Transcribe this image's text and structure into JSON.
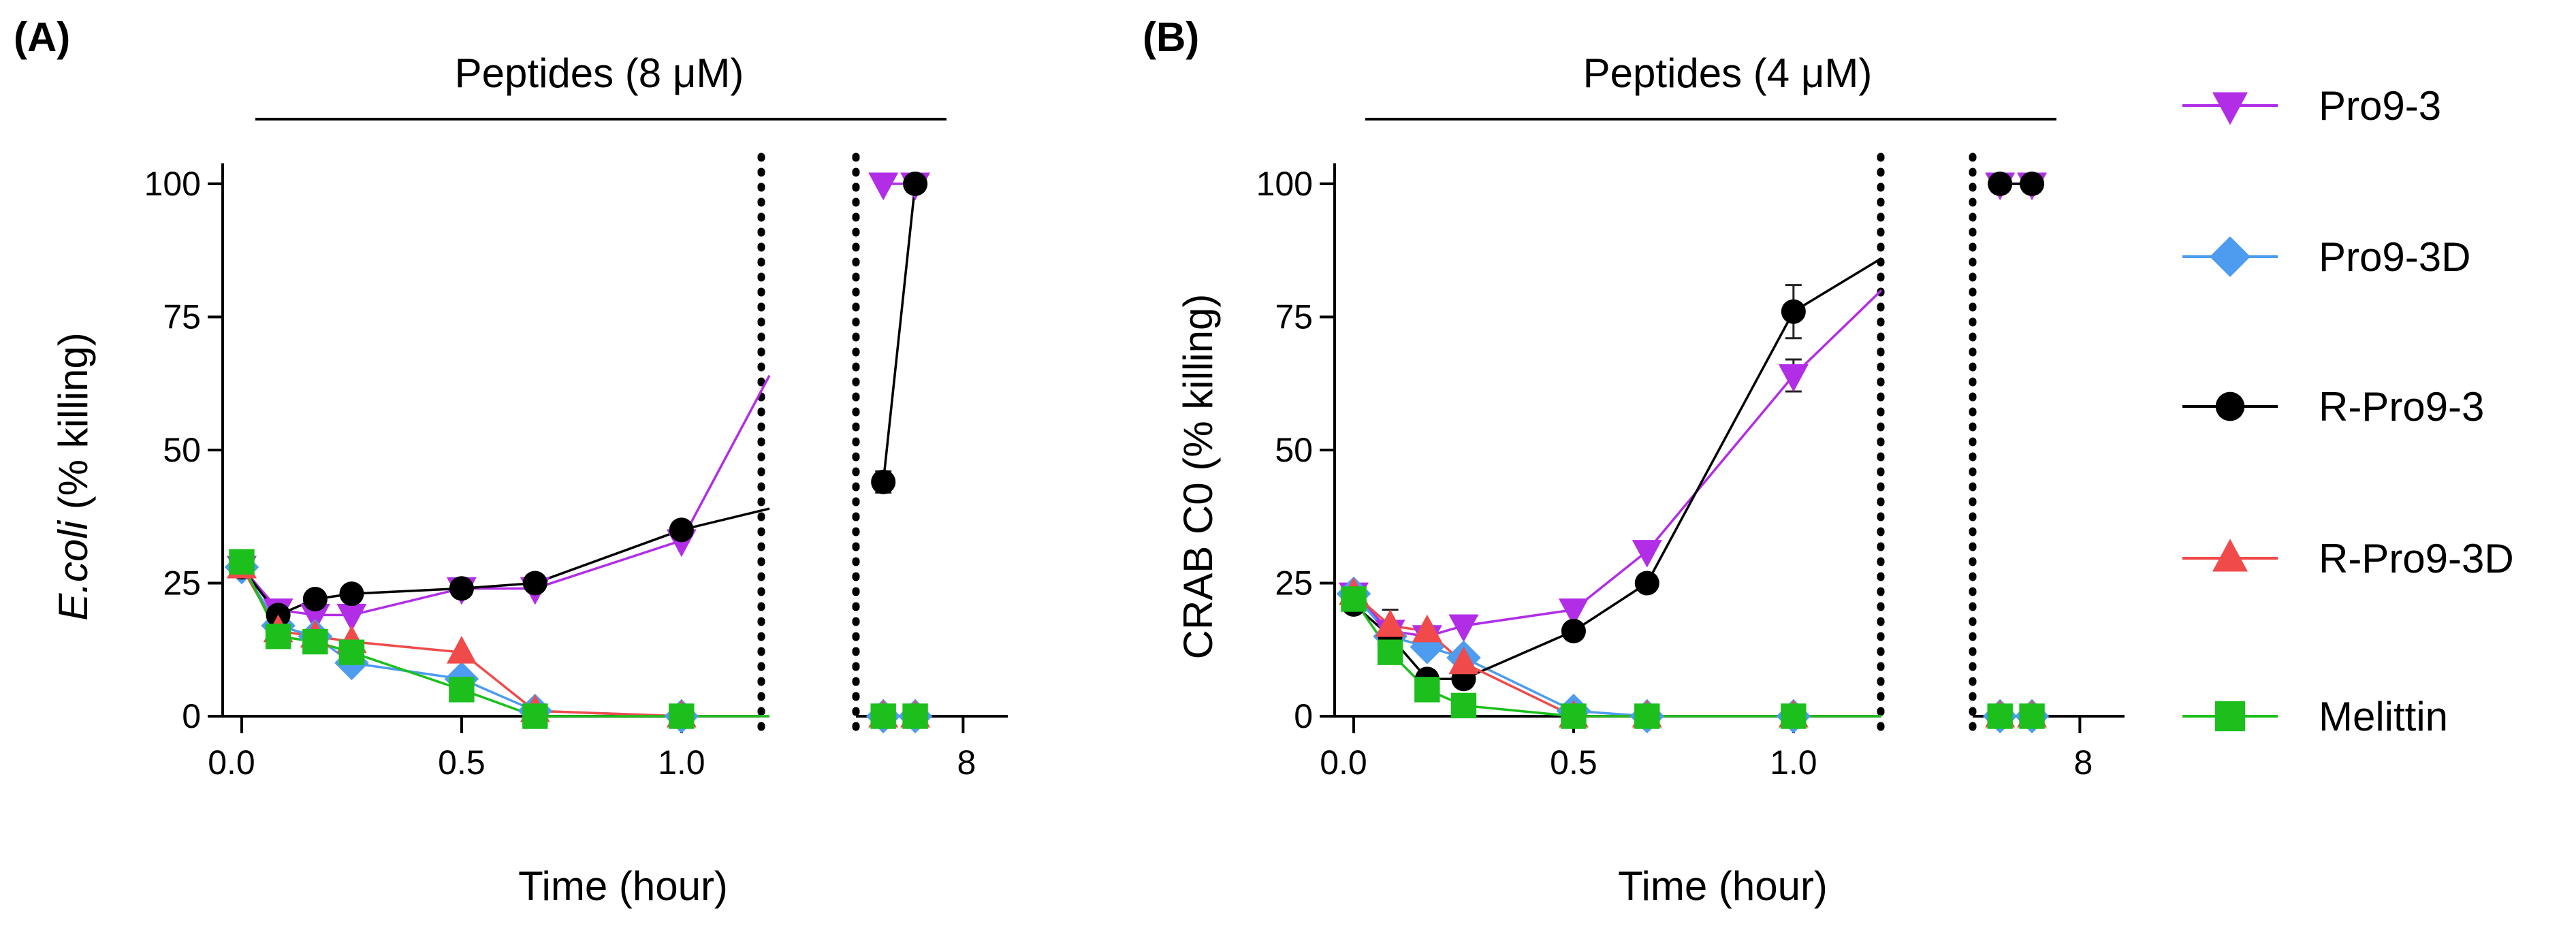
{
  "chart_data": [
    {
      "type": "line",
      "panel_label": "(A)",
      "header": "Peptides (8 μM)",
      "xlabel": "Time (hour)",
      "ylabel_italic": "E.coli",
      "ylabel_rest": " (% killing)",
      "ylim": [
        0,
        100
      ],
      "yticks": [
        0,
        25,
        50,
        75,
        100
      ],
      "ytick_labels": [
        "0",
        "25",
        "50",
        "75",
        "100"
      ],
      "segment1": {
        "xlim": [
          0,
          1.2
        ],
        "xticks": [
          0,
          0.5,
          1.0
        ],
        "xtick_labels": [
          "0.0",
          "0.5",
          "1.0"
        ]
      },
      "segment2": {
        "xlim": [
          6.3,
          8.7
        ],
        "xticks": [
          8
        ],
        "xtick_labels": [
          "8"
        ]
      },
      "series": [
        {
          "name": "Pro9-3",
          "color": "#b12ee6",
          "marker": "triangle-down",
          "points": [
            [
              0,
              28
            ],
            [
              0.083,
              20
            ],
            [
              0.167,
              19
            ],
            [
              0.25,
              19
            ],
            [
              0.5,
              24
            ],
            [
              0.667,
              24
            ],
            [
              1.0,
              33
            ]
          ],
          "tail": [
            1.2,
            64
          ],
          "points2": [
            [
              6.75,
              100
            ],
            [
              7.25,
              100
            ]
          ],
          "err": []
        },
        {
          "name": "Pro9-3D",
          "color": "#4d9cf0",
          "marker": "diamond",
          "points": [
            [
              0,
              28
            ],
            [
              0.083,
              17
            ],
            [
              0.167,
              15
            ],
            [
              0.25,
              10
            ],
            [
              0.5,
              7
            ],
            [
              0.667,
              1
            ],
            [
              1.0,
              0
            ]
          ],
          "tail": [
            1.2,
            0
          ],
          "points2": [
            [
              6.75,
              0
            ],
            [
              7.25,
              0
            ]
          ],
          "err": []
        },
        {
          "name": "R-Pro9-3",
          "color": "#000000",
          "marker": "circle",
          "points": [
            [
              0,
              28
            ],
            [
              0.083,
              19
            ],
            [
              0.167,
              22
            ],
            [
              0.25,
              23
            ],
            [
              0.5,
              24
            ],
            [
              0.667,
              25
            ],
            [
              1.0,
              35
            ]
          ],
          "tail": [
            1.2,
            39
          ],
          "points2": [
            [
              6.75,
              44
            ],
            [
              7.25,
              100
            ]
          ],
          "err": [
            [
              6.75,
              44,
              2
            ]
          ]
        },
        {
          "name": "R-Pro9-3D",
          "color": "#f04a4a",
          "marker": "triangle-up",
          "points": [
            [
              0,
              28
            ],
            [
              0.083,
              16
            ],
            [
              0.167,
              15
            ],
            [
              0.25,
              14
            ],
            [
              0.5,
              12
            ],
            [
              0.667,
              1
            ],
            [
              1.0,
              0
            ]
          ],
          "tail": [
            1.2,
            0
          ],
          "points2": [
            [
              6.75,
              0
            ],
            [
              7.25,
              0
            ]
          ],
          "err": []
        },
        {
          "name": "Melittin",
          "color": "#1cbf1c",
          "marker": "square",
          "points": [
            [
              0,
              29
            ],
            [
              0.083,
              15
            ],
            [
              0.167,
              14
            ],
            [
              0.25,
              12
            ],
            [
              0.5,
              5
            ],
            [
              0.667,
              0
            ],
            [
              1.0,
              0
            ]
          ],
          "tail": [
            1.2,
            0
          ],
          "points2": [
            [
              6.75,
              0
            ],
            [
              7.25,
              0
            ]
          ],
          "err": []
        }
      ]
    },
    {
      "type": "line",
      "panel_label": "(B)",
      "header": "Peptides (4 μM)",
      "xlabel": "Time (hour)",
      "ylabel_italic": "",
      "ylabel_rest": "CRAB C0 (% killing)",
      "ylim": [
        0,
        100
      ],
      "yticks": [
        0,
        25,
        50,
        75,
        100
      ],
      "ytick_labels": [
        "0",
        "25",
        "50",
        "75",
        "100"
      ],
      "segment1": {
        "xlim": [
          0,
          1.2
        ],
        "xticks": [
          0,
          0.5,
          1.0
        ],
        "xtick_labels": [
          "0.0",
          "0.5",
          "1.0"
        ]
      },
      "segment2": {
        "xlim": [
          6.3,
          8.7
        ],
        "xticks": [
          8
        ],
        "xtick_labels": [
          "8"
        ]
      },
      "series": [
        {
          "name": "Pro9-3",
          "color": "#b12ee6",
          "marker": "triangle-down",
          "points": [
            [
              0,
              23
            ],
            [
              0.083,
              16
            ],
            [
              0.167,
              15
            ],
            [
              0.25,
              17
            ],
            [
              0.5,
              20
            ],
            [
              0.667,
              31
            ],
            [
              1.0,
              64
            ]
          ],
          "tail": [
            1.2,
            80
          ],
          "points2": [
            [
              6.75,
              100
            ],
            [
              7.25,
              100
            ]
          ],
          "err": [
            [
              1.0,
              64,
              3
            ]
          ]
        },
        {
          "name": "Pro9-3D",
          "color": "#4d9cf0",
          "marker": "diamond",
          "points": [
            [
              0,
              23
            ],
            [
              0.083,
              15
            ],
            [
              0.167,
              13
            ],
            [
              0.25,
              11
            ],
            [
              0.5,
              1
            ],
            [
              0.667,
              0
            ],
            [
              1.0,
              0
            ]
          ],
          "tail": [
            1.2,
            0
          ],
          "points2": [
            [
              6.75,
              0
            ],
            [
              7.25,
              0
            ]
          ],
          "err": []
        },
        {
          "name": "R-Pro9-3",
          "color": "#000000",
          "marker": "circle",
          "points": [
            [
              0,
              21
            ],
            [
              0.083,
              15
            ],
            [
              0.167,
              7
            ],
            [
              0.25,
              7
            ],
            [
              0.5,
              16
            ],
            [
              0.667,
              25
            ],
            [
              1.0,
              76
            ]
          ],
          "tail": [
            1.2,
            86
          ],
          "points2": [
            [
              6.75,
              100
            ],
            [
              7.25,
              100
            ]
          ],
          "err": [
            [
              1.0,
              76,
              5
            ]
          ]
        },
        {
          "name": "R-Pro9-3D",
          "color": "#f04a4a",
          "marker": "triangle-up",
          "points": [
            [
              0,
              23
            ],
            [
              0.083,
              17
            ],
            [
              0.167,
              16
            ],
            [
              0.25,
              10
            ],
            [
              0.5,
              0
            ],
            [
              0.667,
              0
            ],
            [
              1.0,
              0
            ]
          ],
          "tail": [
            1.2,
            0
          ],
          "points2": [
            [
              6.75,
              0
            ],
            [
              7.25,
              0
            ]
          ],
          "err": [
            [
              0.083,
              17,
              3
            ]
          ]
        },
        {
          "name": "Melittin",
          "color": "#1cbf1c",
          "marker": "square",
          "points": [
            [
              0,
              22
            ],
            [
              0.083,
              12
            ],
            [
              0.167,
              5
            ],
            [
              0.25,
              2
            ],
            [
              0.5,
              0
            ],
            [
              0.667,
              0
            ],
            [
              1.0,
              0
            ]
          ],
          "tail": [
            1.2,
            0
          ],
          "points2": [
            [
              6.75,
              0
            ],
            [
              7.25,
              0
            ]
          ],
          "err": []
        }
      ]
    }
  ],
  "legend": {
    "position": "right",
    "items": [
      {
        "label": "Pro9-3",
        "color": "#b12ee6",
        "marker": "triangle-down"
      },
      {
        "label": "Pro9-3D",
        "color": "#4d9cf0",
        "marker": "diamond"
      },
      {
        "label": "R-Pro9-3",
        "color": "#000000",
        "marker": "circle"
      },
      {
        "label": "R-Pro9-3D",
        "color": "#f04a4a",
        "marker": "triangle-up"
      },
      {
        "label": "Melittin",
        "color": "#1cbf1c",
        "marker": "square"
      }
    ]
  }
}
